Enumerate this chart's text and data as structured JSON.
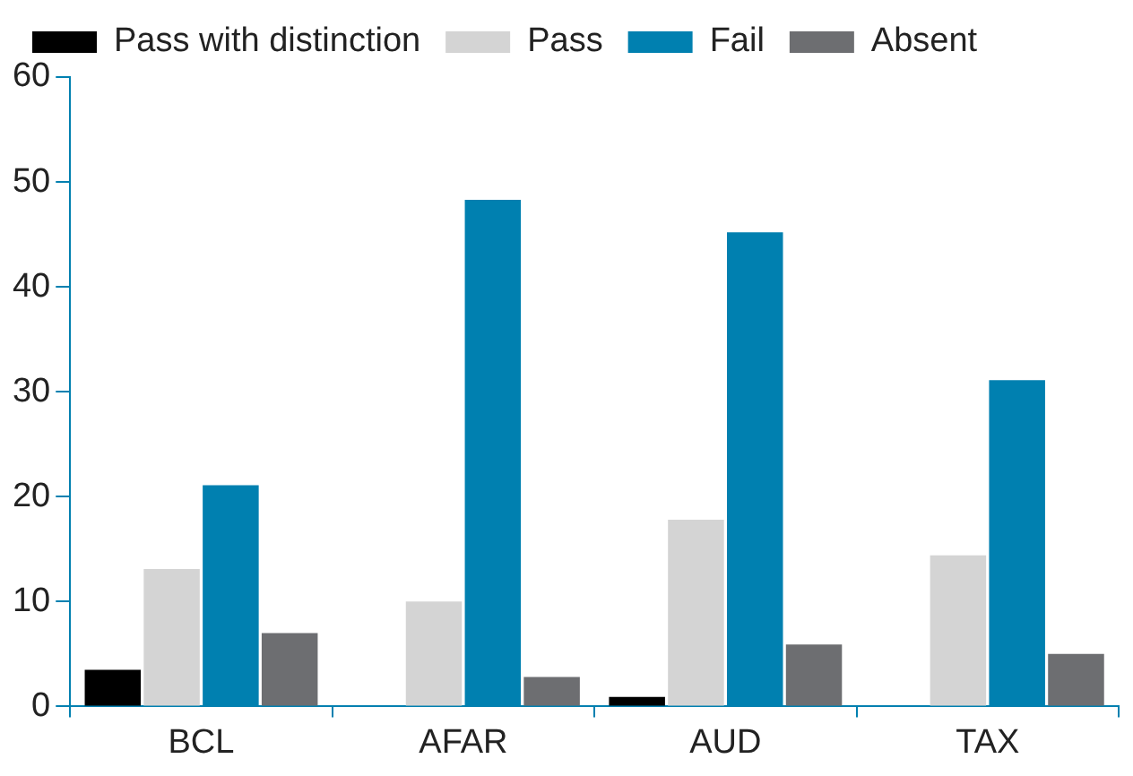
{
  "chart_data": {
    "type": "bar",
    "categories": [
      "BCL",
      "AFAR",
      "AUD",
      "TAX"
    ],
    "series": [
      {
        "name": "Pass with distinction",
        "color": "#000000",
        "values": [
          3.5,
          0,
          0.9,
          0
        ]
      },
      {
        "name": "Pass",
        "color": "#d4d4d4",
        "values": [
          13.1,
          10,
          17.8,
          14.4
        ]
      },
      {
        "name": "Fail",
        "color": "#0080b0",
        "values": [
          21.1,
          48.3,
          45.2,
          31.1
        ]
      },
      {
        "name": "Absent",
        "color": "#6d6e71",
        "values": [
          7,
          2.8,
          5.9,
          5
        ]
      }
    ],
    "ylim": [
      0,
      60
    ],
    "yticks": [
      0,
      10,
      20,
      30,
      40,
      50,
      60
    ],
    "grid": false,
    "legend": "top left"
  }
}
